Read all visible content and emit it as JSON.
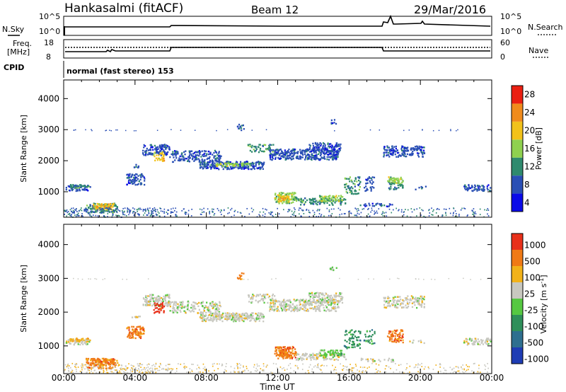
{
  "header": {
    "title": "Hankasalmi (fitACF)",
    "beam": "Beam 12",
    "date": "29/Mar/2016"
  },
  "noise_panel": {
    "left_label": "N.Sky",
    "right_label": "N.Search",
    "left_ticks": [
      "10^5",
      "10^0"
    ],
    "right_ticks": [
      "10^5",
      "10^0"
    ]
  },
  "freq_panel": {
    "left_label_1": "Freq.",
    "left_label_2": "[MHz]",
    "right_label": "Nave",
    "left_ticks": [
      "18",
      "8"
    ],
    "right_ticks": [
      "60",
      "0"
    ]
  },
  "cpid": {
    "label": "CPID",
    "text": "normal (fast stereo) 153"
  },
  "x_axis": {
    "label": "Time UT",
    "ticks": [
      "00:00",
      "04:00",
      "08:00",
      "12:00",
      "16:00",
      "20:00",
      "00:00"
    ]
  },
  "chart_data": [
    {
      "type": "heatmap",
      "ylabel": "Slant Range [km]",
      "xlabel": "Time UT",
      "ylim": [
        180,
        4600
      ],
      "y_ticks": [
        "1000",
        "2000",
        "3000",
        "4000"
      ],
      "colorbar": {
        "label": "Power [dB]",
        "ticks": [
          "4",
          "8",
          "12",
          "16",
          "20",
          "24",
          "28"
        ],
        "colors": [
          "#0a0ae8",
          "#2a4fb5",
          "#2f8a6e",
          "#8fd14f",
          "#f2c21b",
          "#f08b1c",
          "#ea1f12"
        ]
      }
    },
    {
      "type": "heatmap",
      "ylabel": "Slant Range [km]",
      "xlabel": "Time UT",
      "ylim": [
        180,
        4600
      ],
      "y_ticks": [
        "1000",
        "2000",
        "3000",
        "4000"
      ],
      "colorbar": {
        "label": "Velocity [m s^-1]",
        "ticks": [
          "1000",
          "500",
          "100",
          "25",
          "-25",
          "-100",
          "-500",
          "-1000"
        ],
        "colors": [
          "#1e3cb4",
          "#2e6f8f",
          "#2f8f5a",
          "#56c842",
          "#c8c8c0",
          "#f2b21a",
          "#f07a16",
          "#e8301a"
        ]
      }
    }
  ]
}
